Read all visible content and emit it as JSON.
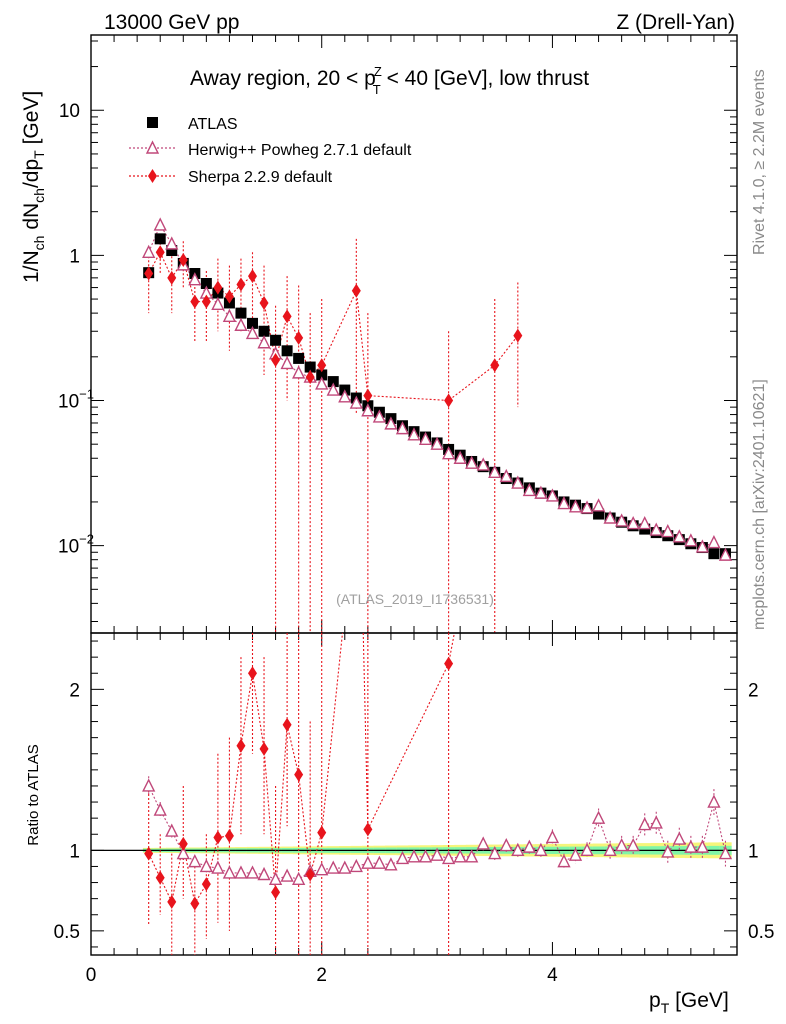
{
  "header": {
    "left": "13000 GeV pp",
    "right": "Z (Drell-Yan)"
  },
  "side": {
    "rivet": "Rivet 4.1.0, ≥ 2.2M events",
    "site": "mcplots.cern.ch [arXiv:2401.10621]"
  },
  "watermark": "(ATLAS_2019_I1736531)",
  "colors": {
    "atlas": "#000000",
    "herwig": "#c0487a",
    "sherpa": "#e8141c",
    "band_inner": "#7ff5a8",
    "band_outer": "#f5f57a"
  },
  "chart_data": [
    {
      "type": "scatter",
      "panel": "main",
      "title_parts": [
        "Away region, 20 < p",
        "Z",
        "T",
        " < 40 [GeV], low thrust"
      ],
      "ylabel_parts": [
        "1/N",
        "ch",
        " dN",
        "ch",
        "/dp",
        "T",
        " [GeV]"
      ],
      "yscale": "log",
      "ylim": [
        0.0025,
        33
      ],
      "xlim": [
        0,
        5.6
      ],
      "yticks": [
        {
          "value": 10,
          "base": "10",
          "exp": ""
        },
        {
          "value": 1,
          "base": "1",
          "exp": ""
        },
        {
          "value": 0.1,
          "base": "10",
          "exp": "−1"
        },
        {
          "value": 0.01,
          "base": "10",
          "exp": "−2"
        }
      ],
      "legend_position": "top-left",
      "series": [
        {
          "name": "ATLAS",
          "marker": "square",
          "x": [
            0.5,
            0.6,
            0.7,
            0.8,
            0.9,
            1.0,
            1.1,
            1.2,
            1.3,
            1.4,
            1.5,
            1.6,
            1.7,
            1.8,
            1.9,
            2.0,
            2.1,
            2.2,
            2.3,
            2.4,
            2.5,
            2.6,
            2.7,
            2.8,
            2.9,
            3.0,
            3.1,
            3.2,
            3.3,
            3.4,
            3.5,
            3.6,
            3.7,
            3.8,
            3.9,
            4.0,
            4.1,
            4.2,
            4.3,
            4.4,
            4.5,
            4.6,
            4.7,
            4.8,
            4.9,
            5.0,
            5.1,
            5.2,
            5.3,
            5.4,
            5.5
          ],
          "y": [
            0.76,
            1.3,
            1.08,
            0.88,
            0.75,
            0.64,
            0.55,
            0.47,
            0.4,
            0.34,
            0.3,
            0.26,
            0.22,
            0.195,
            0.17,
            0.15,
            0.135,
            0.118,
            0.104,
            0.092,
            0.083,
            0.075,
            0.067,
            0.061,
            0.056,
            0.051,
            0.046,
            0.042,
            0.038,
            0.035,
            0.032,
            0.029,
            0.027,
            0.025,
            0.023,
            0.022,
            0.02,
            0.019,
            0.018,
            0.0165,
            0.0155,
            0.0145,
            0.0137,
            0.013,
            0.0123,
            0.0117,
            0.011,
            0.0103,
            0.0097,
            0.0088,
            0.0088
          ]
        },
        {
          "name": "Herwig++ Powheg 2.7.1 default",
          "marker": "open-triangle",
          "x": [
            0.5,
            0.6,
            0.7,
            0.8,
            0.9,
            1.0,
            1.1,
            1.2,
            1.3,
            1.4,
            1.5,
            1.6,
            1.7,
            1.8,
            1.9,
            2.0,
            2.1,
            2.2,
            2.3,
            2.4,
            2.5,
            2.6,
            2.7,
            2.8,
            2.9,
            3.0,
            3.1,
            3.2,
            3.3,
            3.4,
            3.5,
            3.6,
            3.7,
            3.8,
            3.9,
            4.0,
            4.1,
            4.2,
            4.3,
            4.4,
            4.5,
            4.6,
            4.7,
            4.8,
            4.9,
            5.0,
            5.1,
            5.2,
            5.3,
            5.4,
            5.5
          ],
          "y": [
            1.05,
            1.62,
            1.2,
            0.86,
            0.68,
            0.55,
            0.46,
            0.38,
            0.33,
            0.29,
            0.25,
            0.21,
            0.18,
            0.155,
            0.145,
            0.13,
            0.118,
            0.106,
            0.096,
            0.085,
            0.077,
            0.069,
            0.064,
            0.058,
            0.054,
            0.05,
            0.043,
            0.04,
            0.037,
            0.036,
            0.032,
            0.03,
            0.027,
            0.024,
            0.023,
            0.022,
            0.0195,
            0.0185,
            0.0182,
            0.0188,
            0.0155,
            0.0148,
            0.0142,
            0.0142,
            0.0128,
            0.0125,
            0.0115,
            0.0108,
            0.0098,
            0.0105,
            0.0086
          ],
          "yerr": [
            0.08,
            0.1,
            0.07,
            0.05,
            0.04,
            0.03,
            0.025,
            0.02,
            0.018,
            0.015,
            0.013,
            0.011,
            0.01,
            0.008,
            0.008,
            0.007,
            0.006,
            0.005,
            0.005,
            0.004,
            0.004,
            0.003,
            0.003,
            0.003,
            0.003,
            0.002,
            0.002,
            0.002,
            0.002,
            0.002,
            0.002,
            0.0015,
            0.0015,
            0.0013,
            0.0013,
            0.0012,
            0.0011,
            0.001,
            0.001,
            0.001,
            0.0009,
            0.0009,
            0.0008,
            0.0008,
            0.0008,
            0.0007,
            0.0007,
            0.0007,
            0.0006,
            0.0007,
            0.0006
          ]
        },
        {
          "name": "Sherpa 2.2.9 default",
          "marker": "diamond",
          "x": [
            0.5,
            0.6,
            0.7,
            0.8,
            0.9,
            1.0,
            1.1,
            1.2,
            1.3,
            1.4,
            1.5,
            1.6,
            1.7,
            1.8,
            1.9,
            2.0,
            2.3,
            2.4,
            3.1,
            3.5,
            3.7
          ],
          "y": [
            0.75,
            1.05,
            0.7,
            0.93,
            0.48,
            0.48,
            0.6,
            0.52,
            0.63,
            0.72,
            0.47,
            0.19,
            0.38,
            0.27,
            0.145,
            0.175,
            0.57,
            0.108,
            0.1,
            0.175,
            0.28
          ],
          "ylo": [
            0.4,
            0.75,
            0.4,
            0.6,
            0.25,
            0.25,
            0.3,
            0.22,
            0.3,
            0.35,
            0.15,
            0.0025,
            0.1,
            0.0025,
            0.0025,
            0.0025,
            0.08,
            0.0025,
            0.0025,
            0.0025,
            0.09
          ],
          "yhi": [
            1.05,
            1.3,
            1.05,
            1.25,
            0.78,
            0.78,
            0.95,
            0.85,
            0.95,
            1.05,
            0.85,
            0.45,
            0.72,
            0.62,
            0.4,
            0.5,
            1.3,
            0.4,
            0.3,
            0.5,
            0.65
          ]
        }
      ]
    },
    {
      "type": "scatter",
      "panel": "ratio",
      "ylabel": "Ratio to ATLAS",
      "xlabel_parts": [
        "p",
        "T",
        " [GeV]"
      ],
      "yscale": "linear",
      "ylim": [
        0.35,
        2.35
      ],
      "xlim": [
        0,
        5.6
      ],
      "yticks": [
        0.5,
        1,
        2
      ],
      "ytick_labels": [
        "0.5",
        "1",
        "2"
      ],
      "xticks": [
        0,
        2,
        4
      ],
      "xtick_labels": [
        "0",
        "2",
        "4"
      ],
      "series": [
        {
          "name": "Herwig++ Powheg 2.7.1 default",
          "marker": "open-triangle",
          "x": [
            0.5,
            0.6,
            0.7,
            0.8,
            0.9,
            1.0,
            1.1,
            1.2,
            1.3,
            1.4,
            1.5,
            1.6,
            1.7,
            1.8,
            1.9,
            2.0,
            2.1,
            2.2,
            2.3,
            2.4,
            2.5,
            2.6,
            2.7,
            2.8,
            2.9,
            3.0,
            3.1,
            3.2,
            3.3,
            3.4,
            3.5,
            3.6,
            3.7,
            3.8,
            3.9,
            4.0,
            4.1,
            4.2,
            4.3,
            4.4,
            4.5,
            4.6,
            4.7,
            4.8,
            4.9,
            5.0,
            5.1,
            5.2,
            5.3,
            5.4,
            5.5
          ],
          "y": [
            1.4,
            1.25,
            1.12,
            0.98,
            0.93,
            0.9,
            0.89,
            0.86,
            0.86,
            0.86,
            0.85,
            0.82,
            0.84,
            0.82,
            0.87,
            0.88,
            0.89,
            0.89,
            0.9,
            0.92,
            0.92,
            0.91,
            0.95,
            0.96,
            0.96,
            0.97,
            0.95,
            0.96,
            0.96,
            1.04,
            0.98,
            1.03,
            1.0,
            1.02,
            1.0,
            1.08,
            0.93,
            0.97,
            1.0,
            1.2,
            1.0,
            1.03,
            1.03,
            1.16,
            1.17,
            0.99,
            1.07,
            1.02,
            1.02,
            1.3,
            0.98
          ],
          "yerr": [
            0.06,
            0.05,
            0.04,
            0.04,
            0.03,
            0.03,
            0.03,
            0.03,
            0.03,
            0.03,
            0.03,
            0.03,
            0.03,
            0.03,
            0.03,
            0.03,
            0.03,
            0.03,
            0.03,
            0.03,
            0.03,
            0.03,
            0.03,
            0.03,
            0.03,
            0.03,
            0.03,
            0.03,
            0.03,
            0.04,
            0.04,
            0.04,
            0.04,
            0.04,
            0.04,
            0.05,
            0.05,
            0.05,
            0.05,
            0.06,
            0.06,
            0.06,
            0.06,
            0.07,
            0.07,
            0.07,
            0.07,
            0.07,
            0.07,
            0.08,
            0.08
          ]
        },
        {
          "name": "Sherpa 2.2.9 default",
          "marker": "diamond",
          "x": [
            0.5,
            0.6,
            0.7,
            0.8,
            0.9,
            1.0,
            1.1,
            1.2,
            1.3,
            1.4,
            1.5,
            1.6,
            1.7,
            1.8,
            1.9,
            2.0,
            2.4,
            3.1
          ],
          "y": [
            0.98,
            0.83,
            0.68,
            1.04,
            0.67,
            0.79,
            1.08,
            1.09,
            1.65,
            2.1,
            1.63,
            0.74,
            1.78,
            1.47,
            0.85,
            1.11,
            1.13,
            2.16
          ],
          "ylo": [
            0.53,
            0.6,
            0.35,
            0.7,
            0.35,
            0.45,
            0.55,
            0.5,
            1.1,
            1.6,
            1.1,
            0.35,
            1.15,
            0.35,
            0.35,
            0.35,
            0.35,
            0.35
          ],
          "yhi": [
            1.4,
            1.1,
            0.98,
            1.4,
            0.95,
            1.1,
            1.6,
            1.7,
            2.2,
            2.35,
            2.2,
            1.4,
            2.35,
            2.35,
            1.8,
            2.35,
            2.35,
            2.35
          ]
        }
      ]
    }
  ]
}
